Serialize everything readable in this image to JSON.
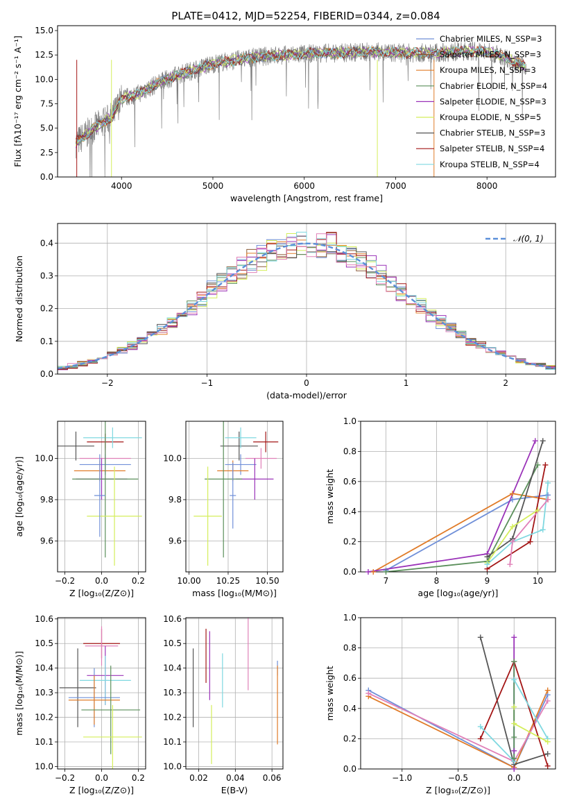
{
  "figure_title": "PLATE=0412, MJD=52254, FIBERID=0344, z=0.084",
  "colors": {
    "chabrier_miles": "#6f8fd8",
    "salpeter_miles": "#8a5a35",
    "kroupa_miles": "#e07b28",
    "chabrier_elodie": "#5a8f5a",
    "salpeter_elodie": "#9a32b8",
    "kroupa_elodie": "#d4ee5a",
    "chabrier_stelib": "#555555",
    "salpeter_stelib": "#a31515",
    "kroupa_stelib": "#7fd8e0",
    "pink": "#e080b8",
    "data": "#808080",
    "normal_curve": "#5b8fd9"
  },
  "chart_data": [
    {
      "id": "spectrum",
      "type": "line",
      "title": "PLATE=0412, MJD=52254, FIBERID=0344, z=0.084",
      "xlabel": "wavelength [Angstrom, rest frame]",
      "ylabel": "Flux [fλ10⁻¹⁷ erg cm⁻² s⁻¹ A⁻¹]",
      "xlim": [
        3300,
        8750
      ],
      "ylim": [
        0,
        15.5
      ],
      "xticks": [
        4000,
        5000,
        6000,
        7000,
        8000
      ],
      "yticks": [
        0.0,
        2.5,
        5.0,
        7.5,
        10.0,
        12.5,
        15.0
      ],
      "grid": false,
      "legend_position": "top-right",
      "legend": [
        "Chabrier MILES, N_SSP=3",
        "Salpeter MILES, N_SSP=3",
        "Kroupa MILES, N_SSP=3",
        "Chabrier ELODIE, N_SSP=4",
        "Salpeter ELODIE, N_SSP=3",
        "Kroupa ELODIE, N_SSP=5",
        "Chabrier STELIB, N_SSP=3",
        "Salpeter STELIB, N_SSP=4",
        "Kroupa STELIB, N_SSP=4"
      ],
      "continuum": {
        "x": [
          3500,
          3700,
          3900,
          4000,
          4200,
          4400,
          4600,
          4800,
          5000,
          5200,
          5400,
          5600,
          5800,
          6000,
          6200,
          6400,
          6600,
          6800,
          7000,
          7200,
          7400,
          7600,
          7800,
          8000,
          8200,
          8400
        ],
        "y": [
          3.5,
          5.0,
          6.2,
          8.0,
          8.6,
          9.6,
          10.4,
          11.0,
          11.6,
          11.9,
          12.2,
          12.4,
          12.5,
          12.6,
          12.7,
          12.7,
          12.8,
          12.8,
          12.7,
          12.7,
          12.7,
          12.8,
          12.9,
          12.8,
          12.3,
          11.4
        ]
      }
    },
    {
      "id": "residuals",
      "type": "line",
      "xlabel": "(data-model)/error",
      "ylabel": "Normed distribution",
      "xlim": [
        -2.5,
        2.5
      ],
      "ylim": [
        0,
        0.46
      ],
      "xticks": [
        -2,
        -1,
        0,
        1,
        2
      ],
      "yticks": [
        0.0,
        0.1,
        0.2,
        0.3,
        0.4
      ],
      "grid": true,
      "legend_position": "top-right",
      "legend": [
        "𝒩(0, 1)"
      ],
      "normal_curve": {
        "mean": 0,
        "sigma": 1
      }
    },
    {
      "id": "age-vs-Z",
      "type": "scatter",
      "xlabel": "Z [log₁₀(Z/Z⊙)]",
      "ylabel": "age  [log₁₀(age/yr)]",
      "xlim": [
        -0.24,
        0.24
      ],
      "ylim": [
        9.45,
        10.18
      ],
      "xticks": [
        -0.2,
        0.0,
        0.2
      ],
      "yticks": [
        9.6,
        9.8,
        10.0
      ],
      "grid": true,
      "points": [
        {
          "c": "chabrier_stelib",
          "x": -0.14,
          "xe": 0.1,
          "y": 10.06,
          "ye": 0.07
        },
        {
          "c": "salpeter_stelib",
          "x": 0.02,
          "xe": 0.1,
          "y": 10.08,
          "ye": 0.04
        },
        {
          "c": "kroupa_stelib",
          "x": 0.06,
          "xe": 0.16,
          "y": 10.1,
          "ye": 0.05
        },
        {
          "c": "pink",
          "x": 0.02,
          "xe": 0.14,
          "y": 10.0,
          "ye": 0.05
        },
        {
          "c": "chabrier_miles",
          "x": 0.02,
          "xe": 0.14,
          "y": 9.97,
          "ye": 0.05
        },
        {
          "c": "kroupa_miles",
          "x": -0.01,
          "xe": 0.14,
          "y": 9.94,
          "ye": 0.05
        },
        {
          "c": "salpeter_elodie",
          "x": 0.0,
          "xe": 0.14,
          "y": 9.9,
          "ye": 0.1
        },
        {
          "c": "chabrier_elodie",
          "x": 0.02,
          "xe": 0.18,
          "y": 9.9,
          "ye": 0.38
        },
        {
          "c": "kroupa_elodie",
          "x": 0.07,
          "xe": 0.15,
          "y": 9.72,
          "ye": 0.24
        },
        {
          "c": "chabrier_miles",
          "x": -0.01,
          "xe": 0.03,
          "y": 9.82,
          "ye": 0.2
        }
      ]
    },
    {
      "id": "age-vs-mass",
      "type": "scatter",
      "xlabel": "mass [log₁₀(M/M⊙)]",
      "ylabel": "",
      "xlim": [
        9.98,
        10.6
      ],
      "ylim": [
        9.45,
        10.18
      ],
      "xticks": [
        10.0,
        10.25,
        10.5
      ],
      "yticks": [
        9.6,
        9.8,
        10.0
      ],
      "grid": true,
      "points": [
        {
          "c": "chabrier_stelib",
          "x": 10.32,
          "xe": 0.12,
          "y": 10.06,
          "ye": 0.07
        },
        {
          "c": "salpeter_stelib",
          "x": 10.49,
          "xe": 0.08,
          "y": 10.08,
          "ye": 0.05
        },
        {
          "c": "kroupa_stelib",
          "x": 10.33,
          "xe": 0.1,
          "y": 10.1,
          "ye": 0.05
        },
        {
          "c": "pink",
          "x": 10.46,
          "xe": 0.1,
          "y": 10.0,
          "ye": 0.05
        },
        {
          "c": "chabrier_miles",
          "x": 10.33,
          "xe": 0.1,
          "y": 9.97,
          "ye": 0.05
        },
        {
          "c": "kroupa_miles",
          "x": 10.28,
          "xe": 0.1,
          "y": 9.94,
          "ye": 0.05
        },
        {
          "c": "salpeter_elodie",
          "x": 10.42,
          "xe": 0.12,
          "y": 9.9,
          "ye": 0.1
        },
        {
          "c": "chabrier_elodie",
          "x": 10.22,
          "xe": 0.12,
          "y": 9.9,
          "ye": 0.38
        },
        {
          "c": "kroupa_elodie",
          "x": 10.12,
          "xe": 0.09,
          "y": 9.72,
          "ye": 0.24
        },
        {
          "c": "chabrier_miles",
          "x": 10.28,
          "xe": 0.02,
          "y": 9.82,
          "ye": 0.16
        }
      ]
    },
    {
      "id": "weight-vs-age",
      "type": "line",
      "xlabel": "age  [log₁₀(age/yr)]",
      "ylabel": "mass weight",
      "xlim": [
        6.5,
        10.35
      ],
      "ylim": [
        0.0,
        1.0
      ],
      "xticks": [
        7,
        8,
        9,
        10
      ],
      "yticks": [
        0.0,
        0.2,
        0.4,
        0.6,
        0.8,
        1.0
      ],
      "grid": true,
      "series": [
        {
          "c": "chabrier_miles",
          "x": [
            7.0,
            9.5,
            10.2
          ],
          "y": [
            0.01,
            0.48,
            0.51
          ]
        },
        {
          "c": "kroupa_miles",
          "x": [
            6.75,
            9.5,
            10.2
          ],
          "y": [
            0.0,
            0.52,
            0.48
          ]
        },
        {
          "c": "salpeter_elodie",
          "x": [
            6.65,
            9.0,
            9.95
          ],
          "y": [
            0.0,
            0.12,
            0.87
          ]
        },
        {
          "c": "chabrier_elodie",
          "x": [
            7.0,
            9.0,
            10.0
          ],
          "y": [
            0.0,
            0.07,
            0.71
          ]
        },
        {
          "c": "chabrier_stelib",
          "x": [
            9.0,
            9.5,
            10.1
          ],
          "y": [
            0.1,
            0.22,
            0.87
          ]
        },
        {
          "c": "salpeter_stelib",
          "x": [
            9.0,
            9.85,
            10.15
          ],
          "y": [
            0.02,
            0.2,
            0.71
          ]
        },
        {
          "c": "kroupa_elodie",
          "x": [
            9.0,
            9.5,
            10.0
          ],
          "y": [
            0.06,
            0.3,
            0.41
          ]
        },
        {
          "c": "kroupa_stelib",
          "x": [
            9.0,
            9.5,
            10.1,
            10.2
          ],
          "y": [
            0.05,
            0.2,
            0.28,
            0.59
          ]
        },
        {
          "c": "pink",
          "x": [
            9.45,
            9.5,
            10.2
          ],
          "y": [
            0.05,
            0.2,
            0.48
          ]
        }
      ]
    },
    {
      "id": "mass-vs-Z",
      "type": "scatter",
      "xlabel": "Z [log₁₀(Z/Z⊙)]",
      "ylabel": "mass [log₁₀(M/M⊙)]",
      "xlim": [
        -0.24,
        0.24
      ],
      "ylim": [
        9.99,
        10.605
      ],
      "xticks": [
        -0.2,
        0.0,
        0.2
      ],
      "yticks": [
        10.0,
        10.1,
        10.2,
        10.3,
        10.4,
        10.5,
        10.6
      ],
      "grid": true,
      "points": [
        {
          "c": "salpeter_stelib",
          "x": 0.0,
          "xe": 0.1,
          "y": 10.5,
          "ye": 0.06
        },
        {
          "c": "pink",
          "x": 0.0,
          "xe": 0.09,
          "y": 10.49,
          "ye": 0.08
        },
        {
          "c": "salpeter_elodie",
          "x": 0.02,
          "xe": 0.1,
          "y": 10.37,
          "ye": 0.12
        },
        {
          "c": "kroupa_stelib",
          "x": 0.02,
          "xe": 0.14,
          "y": 10.35,
          "ye": 0.1
        },
        {
          "c": "chabrier_stelib",
          "x": -0.13,
          "xe": 0.1,
          "y": 10.32,
          "ye": 0.16
        },
        {
          "c": "chabrier_miles",
          "x": -0.04,
          "xe": 0.14,
          "y": 10.28,
          "ye": 0.12
        },
        {
          "c": "kroupa_miles",
          "x": -0.04,
          "xe": 0.14,
          "y": 10.27,
          "ye": 0.1
        },
        {
          "c": "chabrier_elodie",
          "x": 0.05,
          "xe": 0.16,
          "y": 10.23,
          "ye": 0.18
        },
        {
          "c": "kroupa_elodie",
          "x": 0.06,
          "xe": 0.16,
          "y": 10.12,
          "ye": 0.13
        }
      ]
    },
    {
      "id": "mass-vs-ebv",
      "type": "scatter",
      "xlabel": "E(B-V)",
      "ylabel": "",
      "xlim": [
        0.013,
        0.066
      ],
      "ylim": [
        9.99,
        10.605
      ],
      "xticks": [
        0.02,
        0.04,
        0.06
      ],
      "yticks": [
        10.0,
        10.1,
        10.2,
        10.3,
        10.4,
        10.5,
        10.6
      ],
      "grid": true,
      "points": [
        {
          "c": "chabrier_stelib",
          "x": 0.017,
          "y": 10.32,
          "ye": 0.16
        },
        {
          "c": "salpeter_stelib",
          "x": 0.024,
          "y": 10.45,
          "ye": 0.11
        },
        {
          "c": "salpeter_elodie",
          "x": 0.026,
          "y": 10.41,
          "ye": 0.14
        },
        {
          "c": "kroupa_elodie",
          "x": 0.027,
          "y": 10.13,
          "ye": 0.12
        },
        {
          "c": "kroupa_stelib",
          "x": 0.033,
          "y": 10.35,
          "ye": 0.11
        },
        {
          "c": "pink",
          "x": 0.047,
          "y": 10.46,
          "ye": 0.15
        },
        {
          "c": "chabrier_miles",
          "x": 0.063,
          "y": 10.4,
          "ye": 0.03
        },
        {
          "c": "kroupa_miles",
          "x": 0.063,
          "y": 10.25,
          "ye": 0.16
        }
      ]
    },
    {
      "id": "weight-vs-Z",
      "type": "line",
      "xlabel": "Z [log₁₀(Z/Z⊙)]",
      "ylabel": "mass weight",
      "xlim": [
        -1.37,
        0.37
      ],
      "ylim": [
        0.0,
        1.0
      ],
      "xticks": [
        -1.0,
        -0.5,
        0.0
      ],
      "yticks": [
        0.0,
        0.2,
        0.4,
        0.6,
        0.8,
        1.0
      ],
      "grid": true,
      "series": [
        {
          "c": "chabrier_miles",
          "x": [
            -1.3,
            0.0,
            0.3
          ],
          "y": [
            0.52,
            0.01,
            0.49
          ]
        },
        {
          "c": "kroupa_miles",
          "x": [
            -1.3,
            0.0,
            0.3
          ],
          "y": [
            0.48,
            0.01,
            0.52
          ]
        },
        {
          "c": "pink",
          "x": [
            -1.3,
            0.0,
            0.3
          ],
          "y": [
            0.5,
            0.05,
            0.45
          ]
        },
        {
          "c": "chabrier_stelib",
          "x": [
            -0.3,
            0.0,
            0.3
          ],
          "y": [
            0.87,
            0.03,
            0.1
          ]
        },
        {
          "c": "salpeter_stelib",
          "x": [
            -0.3,
            0.0,
            0.3
          ],
          "y": [
            0.2,
            0.71,
            0.02
          ]
        },
        {
          "c": "salpeter_elodie",
          "x": [
            0.0,
            0.0,
            0.0
          ],
          "y": [
            0.87,
            0.12,
            0.0
          ]
        },
        {
          "c": "kroupa_stelib",
          "x": [
            -0.3,
            0.0,
            0.0,
            0.3
          ],
          "y": [
            0.28,
            0.05,
            0.59,
            0.2
          ]
        },
        {
          "c": "kroupa_elodie",
          "x": [
            0.0,
            0.0,
            0.3
          ],
          "y": [
            0.41,
            0.3,
            0.18
          ]
        },
        {
          "c": "chabrier_elodie",
          "x": [
            0.0,
            0.0,
            0.0
          ],
          "y": [
            0.71,
            0.21,
            0.07
          ]
        }
      ]
    }
  ]
}
